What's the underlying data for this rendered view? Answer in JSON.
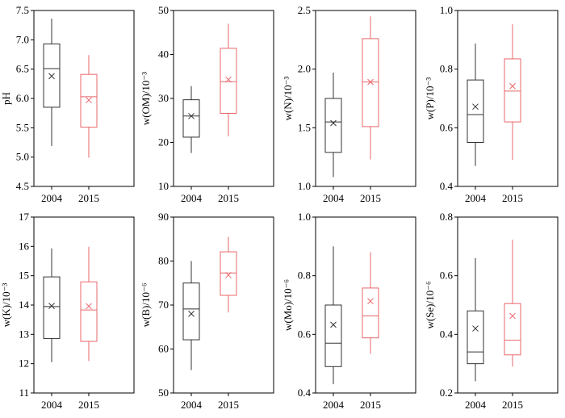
{
  "colors": {
    "y2004": "#333333",
    "y2015": "#e8676b",
    "axis": "#000000"
  },
  "chart_data": [
    {
      "type": "box",
      "ylabel": "pH",
      "categories": [
        "2004",
        "2015"
      ],
      "ylim": [
        4.5,
        7.5
      ],
      "yticks": [
        "4.5",
        "5.0",
        "5.5",
        "6.0",
        "6.5",
        "7.0",
        "7.5"
      ],
      "boxes": [
        {
          "name": "2004",
          "min": 5.19,
          "q1": 5.85,
          "median": 6.51,
          "q3": 6.93,
          "max": 7.36,
          "mean": 6.38
        },
        {
          "name": "2015",
          "min": 4.99,
          "q1": 5.51,
          "median": 6.03,
          "q3": 6.41,
          "max": 6.74,
          "mean": 5.97
        }
      ]
    },
    {
      "type": "box",
      "ylabel": "w(OM)/10⁻³",
      "categories": [
        "2004",
        "2015"
      ],
      "ylim": [
        10,
        50
      ],
      "yticks": [
        "10",
        "20",
        "30",
        "40",
        "50"
      ],
      "boxes": [
        {
          "name": "2004",
          "min": 17.6,
          "q1": 21.2,
          "median": 26.0,
          "q3": 29.7,
          "max": 32.8,
          "mean": 26.0
        },
        {
          "name": "2015",
          "min": 21.4,
          "q1": 26.6,
          "median": 33.8,
          "q3": 41.4,
          "max": 47.0,
          "mean": 34.3
        }
      ]
    },
    {
      "type": "box",
      "ylabel": "w(N)/10⁻³",
      "categories": [
        "2004",
        "2015"
      ],
      "ylim": [
        1.0,
        2.5
      ],
      "yticks": [
        "1.0",
        "1.5",
        "2.0",
        "2.5"
      ],
      "boxes": [
        {
          "name": "2004",
          "min": 1.08,
          "q1": 1.29,
          "median": 1.55,
          "q3": 1.75,
          "max": 1.97,
          "mean": 1.54
        },
        {
          "name": "2015",
          "min": 1.23,
          "q1": 1.51,
          "median": 1.89,
          "q3": 2.26,
          "max": 2.45,
          "mean": 1.89
        }
      ]
    },
    {
      "type": "box",
      "ylabel": "w(P)/10⁻³",
      "categories": [
        "2004",
        "2015"
      ],
      "ylim": [
        0.4,
        1.0
      ],
      "yticks": [
        "0.4",
        "0.6",
        "0.8",
        "1.0"
      ],
      "boxes": [
        {
          "name": "2004",
          "min": 0.47,
          "q1": 0.55,
          "median": 0.645,
          "q3": 0.763,
          "max": 0.887,
          "mean": 0.672
        },
        {
          "name": "2015",
          "min": 0.49,
          "q1": 0.62,
          "median": 0.725,
          "q3": 0.835,
          "max": 0.953,
          "mean": 0.742
        }
      ]
    },
    {
      "type": "box",
      "ylabel": "w(K)/10⁻³",
      "categories": [
        "2004",
        "2015"
      ],
      "ylim": [
        11,
        17
      ],
      "yticks": [
        "11",
        "12",
        "13",
        "14",
        "15",
        "16",
        "17"
      ],
      "boxes": [
        {
          "name": "2004",
          "min": 12.05,
          "q1": 12.86,
          "median": 13.95,
          "q3": 14.96,
          "max": 15.93,
          "mean": 13.97
        },
        {
          "name": "2015",
          "min": 12.09,
          "q1": 12.76,
          "median": 13.83,
          "q3": 14.79,
          "max": 15.99,
          "mean": 13.96
        }
      ]
    },
    {
      "type": "box",
      "ylabel": "w(B)/10⁻⁶",
      "categories": [
        "2004",
        "2015"
      ],
      "ylim": [
        50,
        90
      ],
      "yticks": [
        "50",
        "60",
        "70",
        "80",
        "90"
      ],
      "boxes": [
        {
          "name": "2004",
          "min": 55.2,
          "q1": 62.1,
          "median": 69.1,
          "q3": 75.0,
          "max": 80.0,
          "mean": 68.0
        },
        {
          "name": "2015",
          "min": 68.3,
          "q1": 72.2,
          "median": 77.3,
          "q3": 82.1,
          "max": 85.5,
          "mean": 76.8
        }
      ]
    },
    {
      "type": "box",
      "ylabel": "w(Mo)/10⁻⁶",
      "categories": [
        "2004",
        "2015"
      ],
      "ylim": [
        0.4,
        1.0
      ],
      "yticks": [
        "0.4",
        "0.6",
        "0.8",
        "1.0"
      ],
      "boxes": [
        {
          "name": "2004",
          "min": 0.43,
          "q1": 0.49,
          "median": 0.57,
          "q3": 0.7,
          "max": 0.9,
          "mean": 0.633
        },
        {
          "name": "2015",
          "min": 0.533,
          "q1": 0.588,
          "median": 0.663,
          "q3": 0.758,
          "max": 0.88,
          "mean": 0.713
        }
      ]
    },
    {
      "type": "box",
      "ylabel": "w(Se)/10⁻⁶",
      "categories": [
        "2004",
        "2015"
      ],
      "ylim": [
        0.2,
        0.8
      ],
      "yticks": [
        "0.2",
        "0.4",
        "0.6",
        "0.8"
      ],
      "boxes": [
        {
          "name": "2004",
          "min": 0.24,
          "q1": 0.3,
          "median": 0.34,
          "q3": 0.48,
          "max": 0.66,
          "mean": 0.42
        },
        {
          "name": "2015",
          "min": 0.29,
          "q1": 0.33,
          "median": 0.38,
          "q3": 0.505,
          "max": 0.723,
          "mean": 0.463
        }
      ]
    }
  ]
}
